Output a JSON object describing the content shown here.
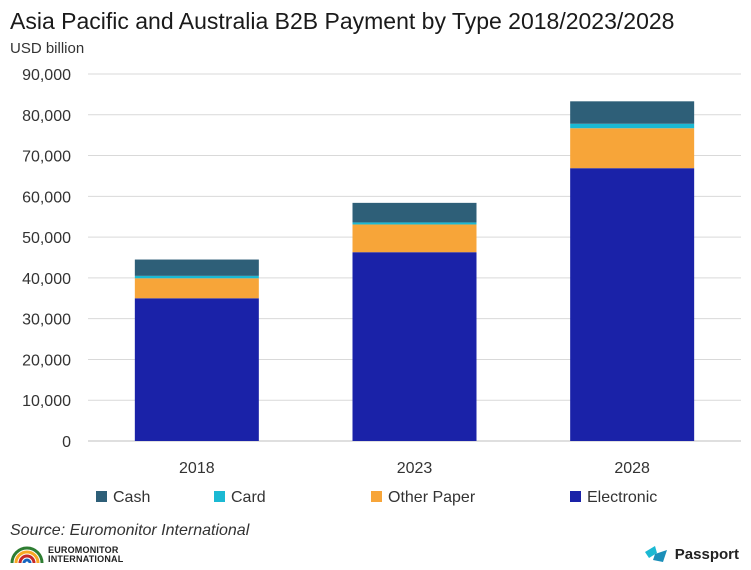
{
  "title": "Asia Pacific and Australia B2B Payment by Type 2018/2023/2028",
  "unit": "USD billion",
  "source": "Source: Euromonitor International",
  "logo_left": {
    "line1": "EUROMONITOR",
    "line2": "INTERNATIONAL"
  },
  "logo_right": {
    "text": "Passport"
  },
  "colors": {
    "Cash": "#2e5f78",
    "Card": "#1bb9d3",
    "Other Paper": "#f7a539",
    "Electronic": "#1a22a8"
  },
  "chart_data": {
    "type": "bar",
    "stacked": true,
    "title": "Asia Pacific and Australia B2B Payment by Type 2018/2023/2028",
    "ylabel": "USD billion",
    "categories": [
      "2018",
      "2023",
      "2028"
    ],
    "ylim": [
      0,
      90000
    ],
    "yticks": [
      "0",
      "10,000",
      "20,000",
      "30,000",
      "40,000",
      "50,000",
      "60,000",
      "70,000",
      "80,000",
      "90,000"
    ],
    "grid": true,
    "legend_position": "bottom",
    "series": [
      {
        "name": "Electronic",
        "values": [
          35000,
          46300,
          66900
        ]
      },
      {
        "name": "Other Paper",
        "values": [
          4900,
          6800,
          9800
        ]
      },
      {
        "name": "Card",
        "values": [
          600,
          500,
          1100
        ]
      },
      {
        "name": "Cash",
        "values": [
          4000,
          4800,
          5500
        ]
      }
    ],
    "legend_order": [
      "Cash",
      "Card",
      "Other Paper",
      "Electronic"
    ]
  }
}
